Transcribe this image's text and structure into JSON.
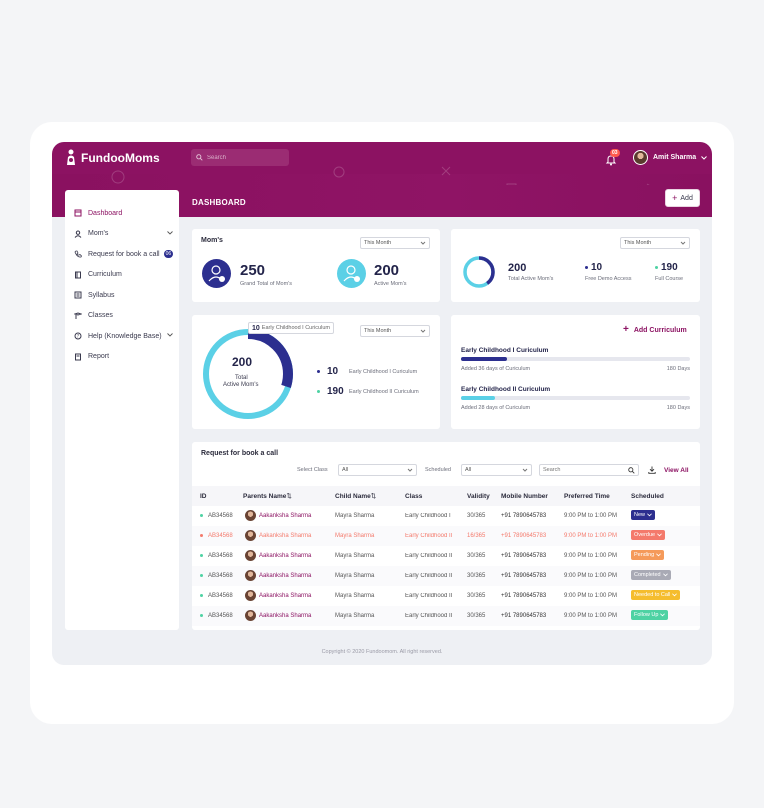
{
  "app": {
    "name": "FundooMoms",
    "page_title": "DASHBOARD",
    "add_label": "Add"
  },
  "search": {
    "placeholder": "Search"
  },
  "notifications": {
    "count": "03"
  },
  "user": {
    "name": "Amit Sharma"
  },
  "sidebar": {
    "items": [
      {
        "label": "Dashboard",
        "icon": "dashboard-icon",
        "active": true
      },
      {
        "label": "Mom's",
        "icon": "user-icon",
        "has_chevron": true
      },
      {
        "label": "Request for book a call",
        "icon": "phone-icon",
        "badge": "06"
      },
      {
        "label": "Curriculum",
        "icon": "book-icon"
      },
      {
        "label": "Syllabus",
        "icon": "list-icon"
      },
      {
        "label": "Classes",
        "icon": "classes-icon"
      },
      {
        "label": "Help (Knowledge Base)",
        "icon": "help-icon",
        "has_chevron": true
      },
      {
        "label": "Report",
        "icon": "report-icon"
      }
    ]
  },
  "moms_card": {
    "title": "Mom's",
    "filter": "This Month",
    "grand_total": {
      "value": "250",
      "label": "Grand Total of Mom's"
    },
    "active": {
      "value": "200",
      "label": "Active Mom's"
    }
  },
  "summary_card": {
    "filter": "This Month",
    "total_active": {
      "value": "200",
      "label": "Total Active Mom's",
      "fraction": 0.4
    },
    "free_demo": {
      "value": "10",
      "label": "Free Demo Access"
    },
    "full_course": {
      "value": "190",
      "label": "Full Course"
    }
  },
  "donut_card": {
    "filter": "This Month",
    "center_value": "200",
    "center_label_1": "Total",
    "center_label_2": "Active Mom's",
    "tooltip": {
      "value": "10",
      "label": "Early Childhood I Curiculum"
    },
    "legend": [
      {
        "value": "10",
        "label": "Early Childhood I Curiculum",
        "color": "#2c2f8f"
      },
      {
        "value": "190",
        "label": "Early Childhood II Curiculum",
        "color": "#4ed2a3"
      }
    ],
    "segment_fraction": 0.3
  },
  "curriculum_card": {
    "add_label": "Add Curriculum",
    "items": [
      {
        "title": "Early Childhood I Curiculum",
        "note": "Added 36 days of Curiculum",
        "days": "180 Days",
        "progress": 0.2,
        "color": "#2c2f8f"
      },
      {
        "title": "Early Childhood II Curiculum",
        "note": "Added 28 days of Curiculum",
        "days": "180 Days",
        "progress": 0.15,
        "color": "#5bd0e6"
      }
    ]
  },
  "calls": {
    "title": "Request for book a call",
    "select_class_label": "Select Class",
    "select_class_value": "All",
    "scheduled_label": "Scheduled",
    "scheduled_value": "All",
    "search_placeholder": "Search",
    "view_all": "View All",
    "columns": [
      "ID",
      "Parents Name",
      "Child Name",
      "Class",
      "Validity",
      "Mobile Number",
      "Preferred Time",
      "Scheduled"
    ],
    "rows": [
      {
        "id": "AB34568",
        "parent": "Aakanksha Sharma",
        "child": "Mayra Sharma",
        "class": "Early Childhood I",
        "validity": "30/365",
        "mobile": "+91 7890645783",
        "time": "9:00 PM to 1:00 PM",
        "status": "New",
        "status_color": "#2c2f8f",
        "highlight": false,
        "dot": "#4ed2a3"
      },
      {
        "id": "AB34568",
        "parent": "Aakanksha Sharma",
        "child": "Mayra Sharma",
        "class": "Early Childhood II",
        "validity": "16/365",
        "mobile": "+91 7890645783",
        "time": "9:00 PM to 1:00 PM",
        "status": "Overdue",
        "status_color": "#f47a6c",
        "highlight": true,
        "dot": "#f47a6c"
      },
      {
        "id": "AB34568",
        "parent": "Aakanksha Sharma",
        "child": "Mayra Sharma",
        "class": "Early Childhood II",
        "validity": "30/365",
        "mobile": "+91 7890645783",
        "time": "9:00 PM to 1:00 PM",
        "status": "Pending",
        "status_color": "#f59a5a",
        "highlight": false,
        "dot": "#4ed2a3"
      },
      {
        "id": "AB34568",
        "parent": "Aakanksha Sharma",
        "child": "Mayra Sharma",
        "class": "Early Childhood II",
        "validity": "30/365",
        "mobile": "+91 7890645783",
        "time": "9:00 PM to 1:00 PM",
        "status": "Completed",
        "status_color": "#a9aab5",
        "highlight": false,
        "dot": "#4ed2a3"
      },
      {
        "id": "AB34568",
        "parent": "Aakanksha Sharma",
        "child": "Mayra Sharma",
        "class": "Early Childhood II",
        "validity": "30/365",
        "mobile": "+91 7890645783",
        "time": "9:00 PM to 1:00 PM",
        "status": "Needed to Call",
        "status_color": "#f5bd2e",
        "highlight": false,
        "dot": "#4ed2a3"
      },
      {
        "id": "AB34568",
        "parent": "Aakanksha Sharma",
        "child": "Mayra Sharma",
        "class": "Early Childhood II",
        "validity": "30/365",
        "mobile": "+91 7890645783",
        "time": "9:00 PM to 1:00 PM",
        "status": "Follow Up",
        "status_color": "#4ed2a3",
        "highlight": false,
        "dot": "#4ed2a3"
      }
    ]
  },
  "footer": {
    "text": "Copyright © 2020 Fundoomom. All right reserved."
  }
}
